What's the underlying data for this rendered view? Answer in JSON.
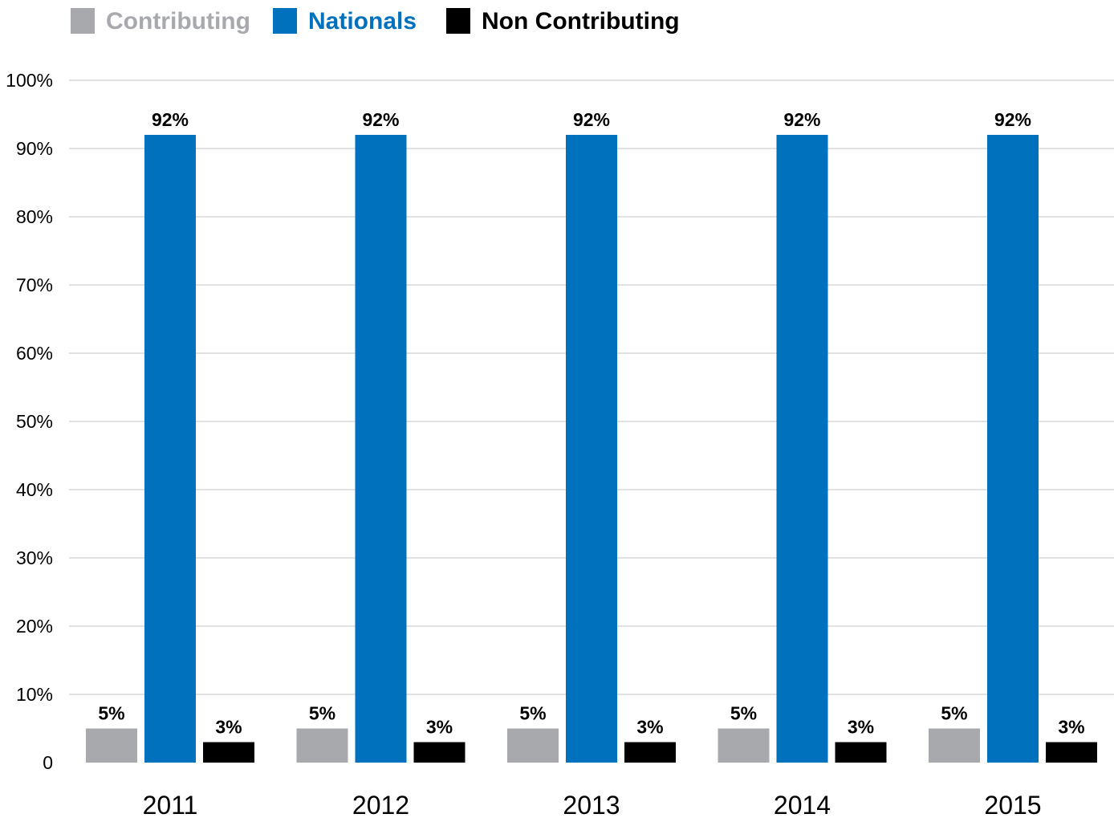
{
  "chart_data": {
    "type": "bar",
    "categories": [
      "2011",
      "2012",
      "2013",
      "2014",
      "2015"
    ],
    "series": [
      {
        "name": "Contributing",
        "color": "#a7a9ac",
        "values": [
          5,
          5,
          5,
          5,
          5
        ],
        "labels": [
          "5%",
          "5%",
          "5%",
          "5%",
          "5%"
        ]
      },
      {
        "name": "Nationals",
        "color": "#0071bc",
        "values": [
          92,
          92,
          92,
          92,
          92
        ],
        "labels": [
          "92%",
          "92%",
          "92%",
          "92%",
          "92%"
        ]
      },
      {
        "name": "Non Contributing",
        "color": "#000000",
        "values": [
          3,
          3,
          3,
          3,
          3
        ],
        "labels": [
          "3%",
          "3%",
          "3%",
          "3%",
          "3%"
        ]
      }
    ],
    "yticks": [
      0,
      10,
      20,
      30,
      40,
      50,
      60,
      70,
      80,
      90,
      100
    ],
    "ytick_labels": [
      "0",
      "10%",
      "20%",
      "30%",
      "40%",
      "50%",
      "60%",
      "70%",
      "80%",
      "90%",
      "100%"
    ],
    "ylim": [
      0,
      100
    ],
    "grid": true,
    "legend_position": "top-left",
    "title": "",
    "xlabel": "",
    "ylabel": ""
  }
}
